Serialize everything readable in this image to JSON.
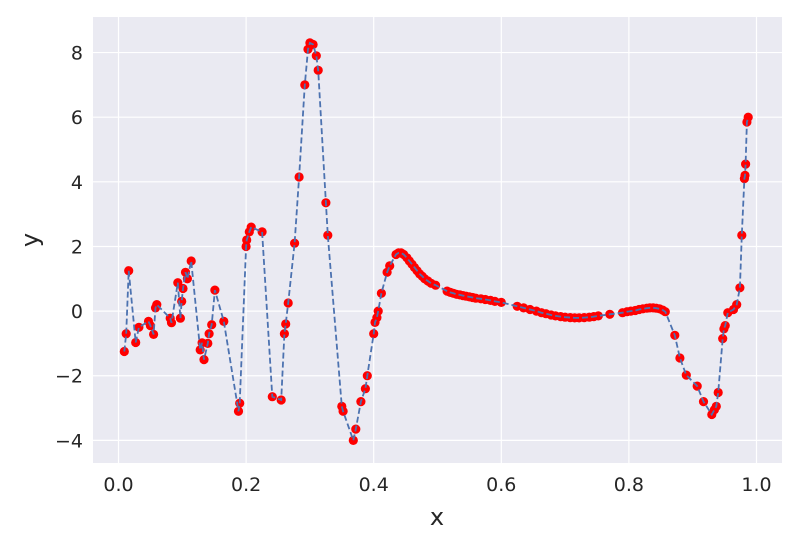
{
  "chart_data": {
    "type": "line",
    "xlabel": "x",
    "ylabel": "y",
    "xlim": [
      -0.04,
      1.04
    ],
    "ylim": [
      -4.7,
      9.1
    ],
    "xticks": [
      0.0,
      0.2,
      0.4,
      0.6,
      0.8,
      1.0
    ],
    "xtick_labels": [
      "0.0",
      "0.2",
      "0.4",
      "0.6",
      "0.8",
      "1.0"
    ],
    "yticks": [
      -4,
      -2,
      0,
      2,
      4,
      6,
      8
    ],
    "ytick_labels": [
      "−4",
      "−2",
      "0",
      "2",
      "4",
      "6",
      "8"
    ],
    "grid": true,
    "colors": {
      "background": "#eaeaf2",
      "grid": "#ffffff",
      "line": "#4c72b0",
      "marker": "#ff0000",
      "text": "#262626"
    },
    "series": [
      {
        "line_style": "dashed",
        "marker": "circle",
        "points": [
          [
            0.009,
            -1.25
          ],
          [
            0.012,
            -0.7
          ],
          [
            0.016,
            1.25
          ],
          [
            0.027,
            -0.97
          ],
          [
            0.032,
            -0.5
          ],
          [
            0.047,
            -0.32
          ],
          [
            0.05,
            -0.45
          ],
          [
            0.055,
            -0.72
          ],
          [
            0.058,
            0.1
          ],
          [
            0.06,
            0.2
          ],
          [
            0.081,
            -0.22
          ],
          [
            0.083,
            -0.36
          ],
          [
            0.093,
            0.88
          ],
          [
            0.097,
            -0.22
          ],
          [
            0.099,
            0.3
          ],
          [
            0.101,
            0.7
          ],
          [
            0.105,
            1.2
          ],
          [
            0.108,
            1.0
          ],
          [
            0.114,
            1.55
          ],
          [
            0.128,
            -1.2
          ],
          [
            0.131,
            -0.98
          ],
          [
            0.134,
            -1.5
          ],
          [
            0.14,
            -1.0
          ],
          [
            0.142,
            -0.7
          ],
          [
            0.146,
            -0.42
          ],
          [
            0.151,
            0.65
          ],
          [
            0.165,
            -0.32
          ],
          [
            0.188,
            -3.1
          ],
          [
            0.19,
            -2.85
          ],
          [
            0.2,
            2.0
          ],
          [
            0.201,
            2.2
          ],
          [
            0.205,
            2.45
          ],
          [
            0.208,
            2.6
          ],
          [
            0.225,
            2.45
          ],
          [
            0.241,
            -2.65
          ],
          [
            0.255,
            -2.75
          ],
          [
            0.26,
            -0.7
          ],
          [
            0.262,
            -0.4
          ],
          [
            0.266,
            0.25
          ],
          [
            0.276,
            2.1
          ],
          [
            0.283,
            4.15
          ],
          [
            0.292,
            7.0
          ],
          [
            0.297,
            8.1
          ],
          [
            0.3,
            8.3
          ],
          [
            0.305,
            8.25
          ],
          [
            0.31,
            7.9
          ],
          [
            0.313,
            7.45
          ],
          [
            0.325,
            3.35
          ],
          [
            0.328,
            2.35
          ],
          [
            0.35,
            -2.95
          ],
          [
            0.352,
            -3.1
          ],
          [
            0.368,
            -4.0
          ],
          [
            0.372,
            -3.65
          ],
          [
            0.38,
            -2.8
          ],
          [
            0.387,
            -2.4
          ],
          [
            0.39,
            -2.0
          ],
          [
            0.4,
            -0.7
          ],
          [
            0.402,
            -0.35
          ],
          [
            0.405,
            -0.2
          ],
          [
            0.407,
            0.0
          ],
          [
            0.412,
            0.55
          ],
          [
            0.421,
            1.2
          ],
          [
            0.425,
            1.4
          ],
          [
            0.435,
            1.75
          ],
          [
            0.439,
            1.8
          ],
          [
            0.443,
            1.8
          ],
          [
            0.447,
            1.75
          ],
          [
            0.452,
            1.65
          ],
          [
            0.456,
            1.55
          ],
          [
            0.46,
            1.45
          ],
          [
            0.464,
            1.35
          ],
          [
            0.468,
            1.25
          ],
          [
            0.472,
            1.15
          ],
          [
            0.476,
            1.08
          ],
          [
            0.48,
            1.0
          ],
          [
            0.485,
            0.93
          ],
          [
            0.49,
            0.86
          ],
          [
            0.497,
            0.8
          ],
          [
            0.515,
            0.62
          ],
          [
            0.52,
            0.58
          ],
          [
            0.525,
            0.55
          ],
          [
            0.53,
            0.52
          ],
          [
            0.535,
            0.5
          ],
          [
            0.54,
            0.48
          ],
          [
            0.545,
            0.46
          ],
          [
            0.55,
            0.44
          ],
          [
            0.555,
            0.42
          ],
          [
            0.56,
            0.4
          ],
          [
            0.568,
            0.38
          ],
          [
            0.575,
            0.36
          ],
          [
            0.583,
            0.33
          ],
          [
            0.59,
            0.3
          ],
          [
            0.6,
            0.27
          ],
          [
            0.625,
            0.15
          ],
          [
            0.635,
            0.1
          ],
          [
            0.645,
            0.05
          ],
          [
            0.655,
            0.0
          ],
          [
            0.663,
            -0.05
          ],
          [
            0.67,
            -0.08
          ],
          [
            0.678,
            -0.12
          ],
          [
            0.685,
            -0.15
          ],
          [
            0.693,
            -0.17
          ],
          [
            0.7,
            -0.19
          ],
          [
            0.708,
            -0.2
          ],
          [
            0.715,
            -0.21
          ],
          [
            0.722,
            -0.21
          ],
          [
            0.73,
            -0.2
          ],
          [
            0.738,
            -0.19
          ],
          [
            0.745,
            -0.17
          ],
          [
            0.752,
            -0.15
          ],
          [
            0.77,
            -0.1
          ],
          [
            0.79,
            -0.05
          ],
          [
            0.797,
            -0.02
          ],
          [
            0.803,
            0.0
          ],
          [
            0.81,
            0.02
          ],
          [
            0.816,
            0.05
          ],
          [
            0.822,
            0.07
          ],
          [
            0.828,
            0.09
          ],
          [
            0.833,
            0.1
          ],
          [
            0.838,
            0.1
          ],
          [
            0.843,
            0.09
          ],
          [
            0.848,
            0.07
          ],
          [
            0.853,
            0.03
          ],
          [
            0.857,
            -0.02
          ],
          [
            0.872,
            -0.75
          ],
          [
            0.88,
            -1.45
          ],
          [
            0.89,
            -1.98
          ],
          [
            0.907,
            -2.32
          ],
          [
            0.917,
            -2.8
          ],
          [
            0.93,
            -3.2
          ],
          [
            0.934,
            -3.05
          ],
          [
            0.937,
            -2.95
          ],
          [
            0.94,
            -2.52
          ],
          [
            0.947,
            -0.85
          ],
          [
            0.949,
            -0.55
          ],
          [
            0.951,
            -0.45
          ],
          [
            0.955,
            -0.05
          ],
          [
            0.964,
            0.05
          ],
          [
            0.969,
            0.2
          ],
          [
            0.974,
            0.72
          ],
          [
            0.977,
            2.35
          ],
          [
            0.981,
            4.1
          ],
          [
            0.982,
            4.2
          ],
          [
            0.983,
            4.55
          ],
          [
            0.985,
            5.85
          ],
          [
            0.987,
            6.0
          ]
        ]
      }
    ]
  }
}
